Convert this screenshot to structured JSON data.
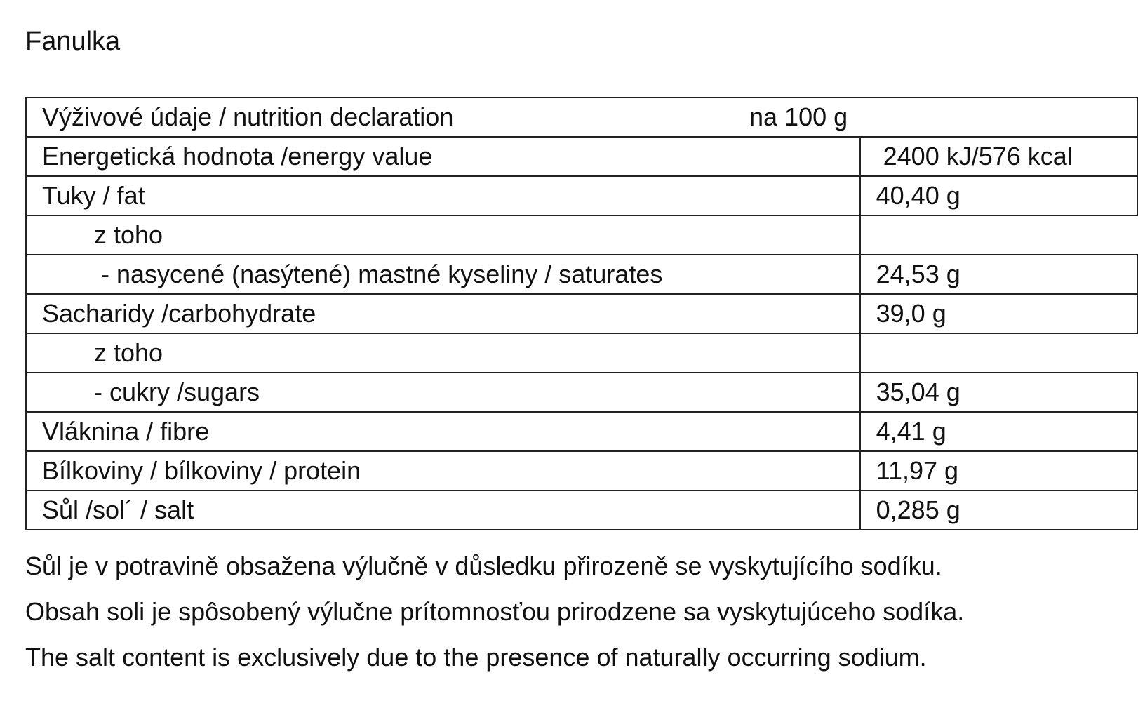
{
  "title": "Fanulka",
  "table": {
    "header": {
      "label": "Výživové údaje / nutrition declaration",
      "unit": "na 100 g"
    },
    "rows": [
      [
        "Energetická hodnota /energy value",
        "2400 kJ/576 kcal"
      ],
      [
        "Tuky / fat",
        "40,40 g"
      ],
      [
        "z toho"
      ],
      [
        "- nasycené (nasýtené) mastné kyseliny / saturates",
        "24,53 g"
      ],
      [
        "Sacharidy /carbohydrate",
        "39,0 g"
      ],
      [
        "z toho"
      ],
      [
        "- cukry /sugars",
        "35,04 g"
      ],
      [
        "Vláknina / fibre",
        "4,41 g"
      ],
      [
        "Bílkoviny / bílkoviny / protein",
        "11,97 g"
      ],
      [
        "Sůl /sol´ / salt",
        "0,285 g"
      ]
    ]
  },
  "notes": [
    "Sůl je v potravině obsažena výlučně v důsledku přirozeně se vyskytujícího sodíku.",
    "Obsah soli je spôsobený výlučne prítomnosťou prirodzene sa vyskytujúceho sodíka.",
    "The salt content is exclusively due to the presence of naturally occurring sodium."
  ]
}
